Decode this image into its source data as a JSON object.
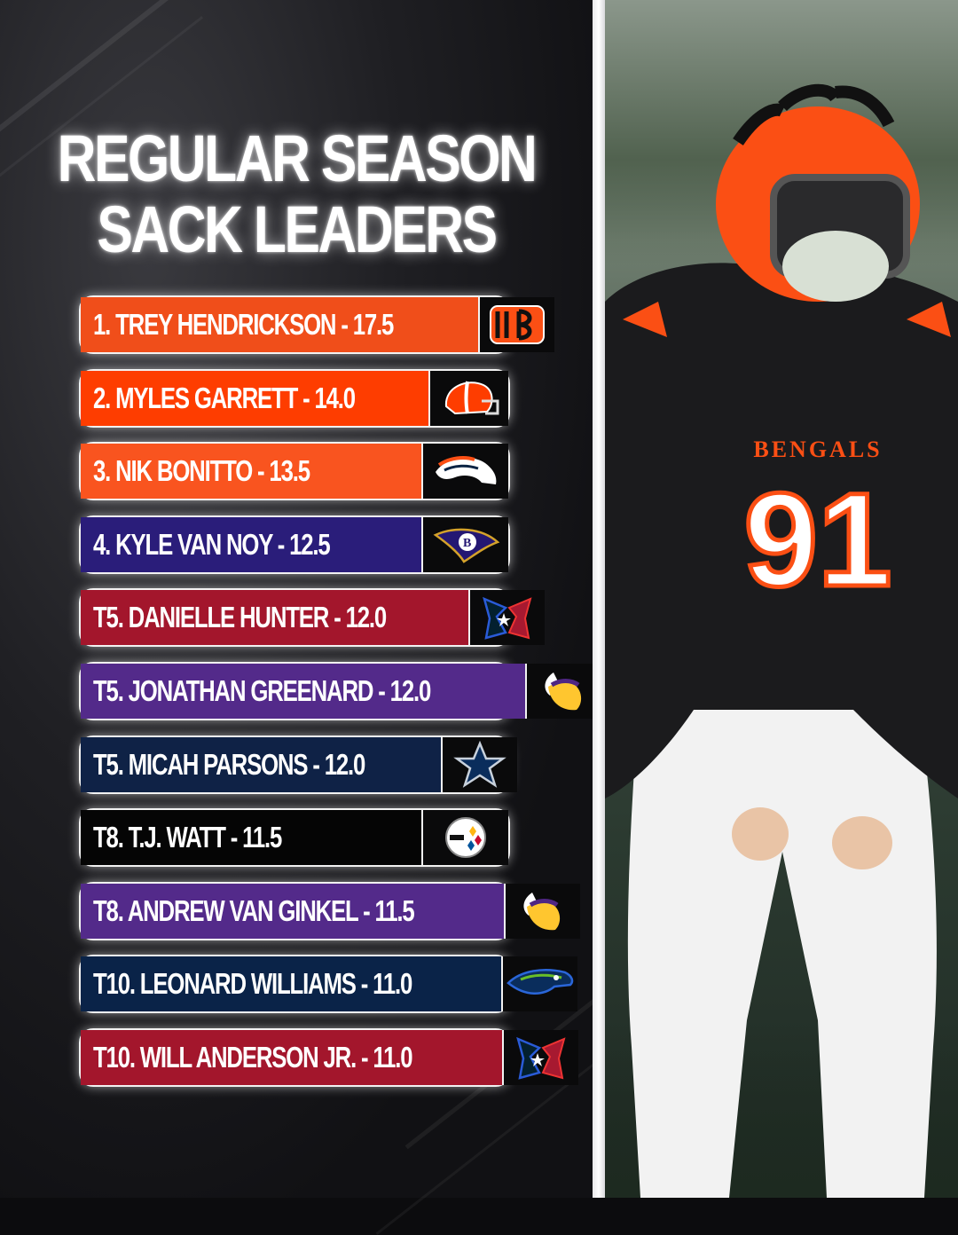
{
  "title": {
    "line1": "REGULAR SEASON",
    "line2": "SACK LEADERS"
  },
  "leaders": [
    {
      "label": "1. TREY HENDRICKSON - 17.5",
      "team_icon": "bengals-logo-icon",
      "color": "#f04e1a"
    },
    {
      "label": "2. MYLES GARRETT - 14.0",
      "team_icon": "browns-helmet-icon",
      "color": "#fe3d00"
    },
    {
      "label": "3. NIK BONITTO - 13.5",
      "team_icon": "broncos-logo-icon",
      "color": "#f9541f"
    },
    {
      "label": "4. KYLE VAN NOY - 12.5",
      "team_icon": "ravens-logo-icon",
      "color": "#2a1d7a"
    },
    {
      "label": "T5. DANIELLE HUNTER - 12.0",
      "team_icon": "texans-logo-icon",
      "color": "#a3162c"
    },
    {
      "label": "T5. JONATHAN GREENARD - 12.0",
      "team_icon": "vikings-logo-icon",
      "color": "#532a8a"
    },
    {
      "label": "T5. MICAH PARSONS - 12.0",
      "team_icon": "cowboys-star-icon",
      "color": "#0f2246"
    },
    {
      "label": "T8. T.J. WATT - 11.5",
      "team_icon": "steelers-logo-icon",
      "color": "#050505"
    },
    {
      "label": "T8. ANDREW VAN GINKEL - 11.5",
      "team_icon": "vikings-logo-icon",
      "color": "#532a8a"
    },
    {
      "label": "T10. LEONARD WILLIAMS - 11.0",
      "team_icon": "seahawks-logo-icon",
      "color": "#0a2348"
    },
    {
      "label": "T10. WILL ANDERSON JR. - 11.0",
      "team_icon": "texans-logo-icon",
      "color": "#a3162c"
    }
  ],
  "photo": {
    "jersey_text": "BENGALS",
    "jersey_number": "91"
  },
  "colors": {
    "bengals_orange": "#fb4f14",
    "bengals_black": "#1b1b1d"
  }
}
